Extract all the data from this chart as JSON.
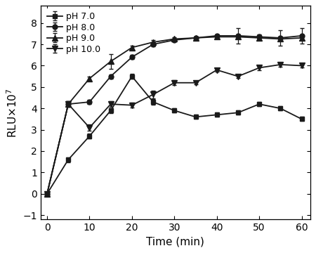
{
  "x": [
    0,
    5,
    10,
    15,
    20,
    25,
    30,
    35,
    40,
    45,
    50,
    55,
    60
  ],
  "ph70": [
    0.0,
    1.6,
    2.7,
    3.9,
    5.5,
    4.3,
    3.9,
    3.6,
    3.7,
    3.8,
    4.2,
    4.0,
    3.5
  ],
  "ph80": [
    0.0,
    4.2,
    4.3,
    5.5,
    6.4,
    7.0,
    7.2,
    7.3,
    7.4,
    7.4,
    7.35,
    7.3,
    7.4
  ],
  "ph90": [
    0.0,
    4.2,
    5.4,
    6.2,
    6.85,
    7.1,
    7.25,
    7.3,
    7.35,
    7.35,
    7.3,
    7.25,
    7.3
  ],
  "ph100": [
    0.0,
    4.2,
    3.1,
    4.2,
    4.15,
    4.65,
    5.2,
    5.2,
    5.8,
    5.5,
    5.9,
    6.05,
    6.0
  ],
  "ph70_err": [
    0.05,
    0.12,
    0.12,
    0.12,
    0.12,
    0.12,
    0.1,
    0.1,
    0.1,
    0.1,
    0.1,
    0.1,
    0.1
  ],
  "ph80_err": [
    0.05,
    0.12,
    0.1,
    0.1,
    0.1,
    0.1,
    0.08,
    0.07,
    0.07,
    0.35,
    0.1,
    0.35,
    0.35
  ],
  "ph90_err": [
    0.05,
    0.12,
    0.1,
    0.35,
    0.1,
    0.1,
    0.08,
    0.07,
    0.07,
    0.1,
    0.1,
    0.1,
    0.1
  ],
  "ph100_err": [
    0.05,
    0.12,
    0.15,
    0.12,
    0.12,
    0.18,
    0.12,
    0.07,
    0.07,
    0.08,
    0.1,
    0.1,
    0.1
  ],
  "xlabel": "Time (min)",
  "ylim": [
    -1.2,
    8.8
  ],
  "xlim": [
    -1.5,
    62
  ],
  "yticks": [
    -1,
    0,
    1,
    2,
    3,
    4,
    5,
    6,
    7,
    8
  ],
  "xticks": [
    0,
    10,
    20,
    30,
    40,
    50,
    60
  ],
  "legend_labels": [
    "pH 7.0",
    "pH 8.0",
    "pH 9.0",
    "pH 10.0"
  ],
  "line_color": "#1a1a1a",
  "bg_color": "#ffffff",
  "figwidth": 4.5,
  "figheight": 3.6
}
